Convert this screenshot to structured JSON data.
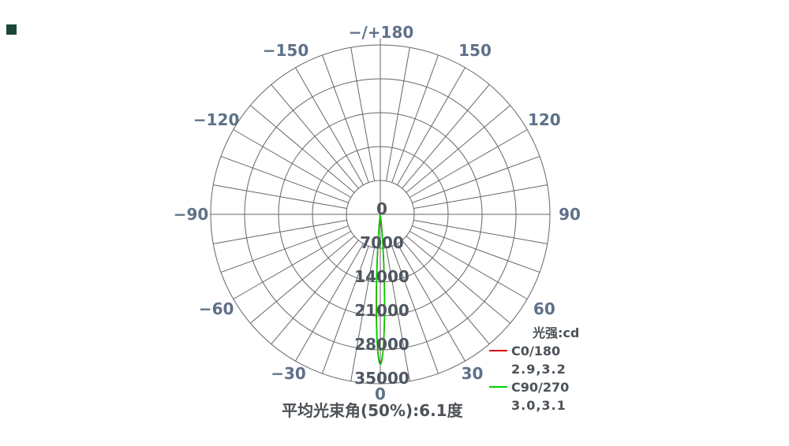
{
  "chart_data": {
    "type": "line",
    "subtype": "polar-photometric-intensity-distribution",
    "legend_title": "光强:cd",
    "caption": "平均光束角(50%):6.1度",
    "avg_beam_angle_50pct_deg": 6.1,
    "top_label": "−/+180",
    "angle_ticks": [
      {
        "deg": -150,
        "label": "−150"
      },
      {
        "deg": -120,
        "label": "−120"
      },
      {
        "deg": -90,
        "label": "−90"
      },
      {
        "deg": -60,
        "label": "−60"
      },
      {
        "deg": -30,
        "label": "−30"
      },
      {
        "deg": 0,
        "label": "0"
      },
      {
        "deg": 30,
        "label": "30"
      },
      {
        "deg": 60,
        "label": "60"
      },
      {
        "deg": 90,
        "label": "90"
      },
      {
        "deg": 120,
        "label": "120"
      },
      {
        "deg": 150,
        "label": "150"
      }
    ],
    "radial_ticks_cd": [
      0,
      7000,
      14000,
      21000,
      28000,
      35000
    ],
    "radial_max_cd": 35000,
    "grid": {
      "rings": 5,
      "spoke_step_deg": 10,
      "line_color": "#666666"
    },
    "legend_position": "right-bottom",
    "series": [
      {
        "name": "C0/180",
        "value_text": "2.9,3.2",
        "color": "#d40000",
        "beam_half_angles_deg": [
          2.9,
          3.2
        ],
        "peak_cd_est": 30800
      },
      {
        "name": "C90/270",
        "value_text": "3.0,3.1",
        "color": "#00d000",
        "beam_half_angles_deg": [
          3.0,
          3.1
        ],
        "peak_cd_est": 31000
      }
    ]
  }
}
